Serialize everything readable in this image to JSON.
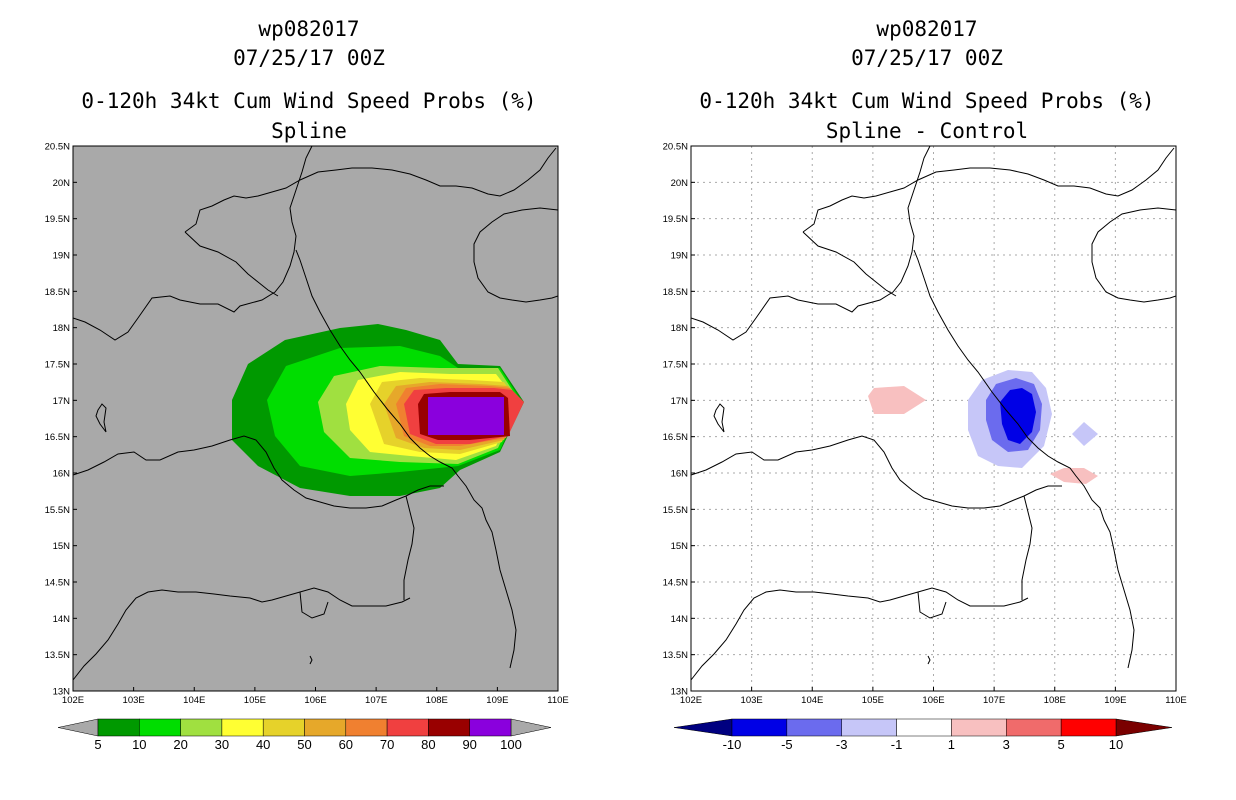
{
  "map_frame": {
    "lon_min": 102,
    "lon_max": 110,
    "lat_min": 13,
    "lat_max": 20.5,
    "x_ticks": [
      "102E",
      "103E",
      "104E",
      "105E",
      "106E",
      "107E",
      "108E",
      "109E",
      "110E"
    ],
    "y_ticks": [
      "13N",
      "13.5N",
      "14N",
      "14.5N",
      "15N",
      "15.5N",
      "16N",
      "16.5N",
      "17N",
      "17.5N",
      "18N",
      "18.5N",
      "19N",
      "19.5N",
      "20N",
      "20.5N"
    ]
  },
  "left_panel": {
    "title_storm": "wp082017",
    "title_date": "07/25/17 00Z",
    "title_product": "0-120h 34kt Cum Wind Speed Probs (%)",
    "title_subject": "Spline",
    "background_color": "#a9a9a9",
    "colorbar_labels": [
      "5",
      "10",
      "20",
      "30",
      "40",
      "50",
      "60",
      "70",
      "80",
      "90",
      "100"
    ],
    "colorbar_colors": [
      "#009900",
      "#00dd00",
      "#a0e040",
      "#ffff33",
      "#e6d22a",
      "#e6a82a",
      "#f08030",
      "#f04040",
      "#990000",
      "#8a00dd"
    ]
  },
  "right_panel": {
    "title_storm": "wp082017",
    "title_date": "07/25/17 00Z",
    "title_product": "0-120h 34kt Cum Wind Speed Probs (%)",
    "title_subject": "Spline - Control",
    "background_color": "#ffffff",
    "colorbar_labels": [
      "-10",
      "-5",
      "-3",
      "-1",
      "1",
      "3",
      "5",
      "10"
    ],
    "colorbar_colors": [
      "#0000e6",
      "#6b6bee",
      "#c6c6f8",
      "#ffffff",
      "#f8c0c0",
      "#f06b6b",
      "#ff0000"
    ],
    "colorbar_end_left": "#000080",
    "colorbar_end_right": "#7a0000"
  }
}
